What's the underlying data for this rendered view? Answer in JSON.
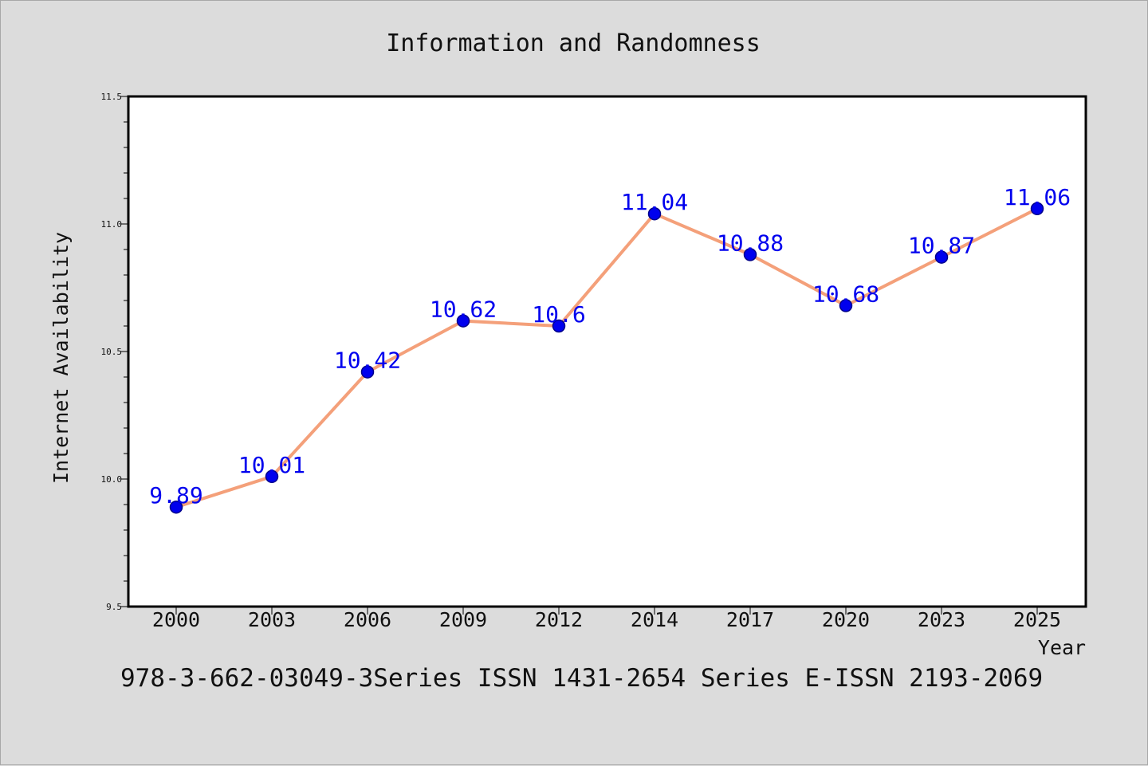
{
  "chart_data": {
    "type": "line",
    "title": "Information and Randomness",
    "xlabel": "Year",
    "ylabel": "Internet Availability",
    "categories": [
      "2000",
      "2003",
      "2006",
      "2009",
      "2012",
      "2014",
      "2017",
      "2020",
      "2023",
      "2025"
    ],
    "series": [
      {
        "values": [
          9.89,
          10.01,
          10.42,
          10.62,
          10.6,
          11.04,
          10.88,
          10.68,
          10.87,
          11.06
        ],
        "labels": [
          "9.89",
          "10.01",
          "10.42",
          "10.62",
          "10.6",
          "11.04",
          "10.88",
          "10.68",
          "10.87",
          "11.06"
        ]
      }
    ],
    "ylim": [
      9.5,
      11.5
    ],
    "yticks": [
      "9.5",
      "10.0",
      "10.5",
      "11.0",
      "11.5"
    ],
    "grid": false,
    "colors": {
      "line": "#f4a07a",
      "marker_fill": "#0000ee",
      "marker_edge": "#00008b",
      "data_label": "#0000ee",
      "background": "#dcdcdc",
      "plot_background": "#ffffff"
    }
  },
  "footer": {
    "text": "978-3-662-03049-3Series ISSN 1431-2654 Series E-ISSN 2193-2069"
  }
}
